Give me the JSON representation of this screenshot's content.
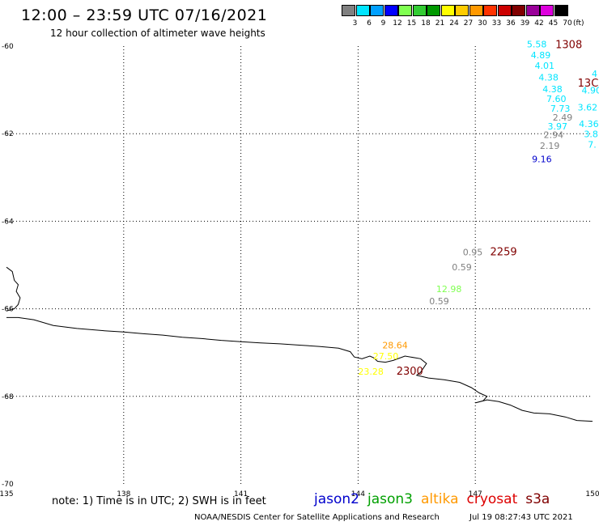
{
  "header": {
    "title": "12:00 – 23:59 UTC 07/16/2021",
    "subtitle": "12 hour collection of altimeter wave heights"
  },
  "legend": {
    "unit": "(ft)",
    "bins": [
      {
        "label": "3",
        "color": "#808080"
      },
      {
        "label": "6",
        "color": "#00e5ff"
      },
      {
        "label": "9",
        "color": "#00a0ff"
      },
      {
        "label": "12",
        "color": "#0000ff"
      },
      {
        "label": "15",
        "color": "#7fff50"
      },
      {
        "label": "18",
        "color": "#33cc33"
      },
      {
        "label": "21",
        "color": "#009900"
      },
      {
        "label": "24",
        "color": "#ffff00"
      },
      {
        "label": "27",
        "color": "#ffcc00"
      },
      {
        "label": "30",
        "color": "#ff9900"
      },
      {
        "label": "33",
        "color": "#ff3300"
      },
      {
        "label": "36",
        "color": "#cc0000"
      },
      {
        "label": "39",
        "color": "#800000"
      },
      {
        "label": "42",
        "color": "#990099"
      },
      {
        "label": "45",
        "color": "#dd00dd"
      },
      {
        "label": "70",
        "color": "#000000"
      }
    ]
  },
  "map": {
    "lon_range": [
      135,
      150
    ],
    "lat_range": [
      -70,
      -60
    ],
    "lon_ticks": [
      {
        "value": 135,
        "label": "135"
      },
      {
        "value": 138,
        "label": "138"
      },
      {
        "value": 141,
        "label": "141"
      },
      {
        "value": 144,
        "label": "144"
      },
      {
        "value": 147,
        "label": "147"
      },
      {
        "value": 150,
        "label": "150"
      }
    ],
    "lat_ticks": [
      {
        "value": -60,
        "label": "-60"
      },
      {
        "value": -62,
        "label": "-62"
      },
      {
        "value": -64,
        "label": "-64"
      },
      {
        "value": -66,
        "label": "-66"
      },
      {
        "value": -68,
        "label": "-68"
      },
      {
        "value": -70,
        "label": "-70"
      }
    ],
    "coast_lines": [
      [
        [
          135.0,
          -65.05
        ],
        [
          135.15,
          -65.15
        ],
        [
          135.2,
          -65.35
        ],
        [
          135.3,
          -65.45
        ],
        [
          135.25,
          -65.6
        ],
        [
          135.35,
          -65.75
        ],
        [
          135.3,
          -65.9
        ],
        [
          135.2,
          -66.0
        ],
        [
          135.0,
          -66.05
        ]
      ],
      [
        [
          135.0,
          -66.2
        ],
        [
          135.3,
          -66.2
        ],
        [
          135.7,
          -66.25
        ],
        [
          136.2,
          -66.38
        ],
        [
          136.8,
          -66.45
        ],
        [
          137.5,
          -66.5
        ],
        [
          138.0,
          -66.53
        ],
        [
          138.5,
          -66.57
        ],
        [
          139.0,
          -66.6
        ],
        [
          139.5,
          -66.65
        ],
        [
          140.0,
          -66.68
        ],
        [
          140.5,
          -66.72
        ],
        [
          141.0,
          -66.75
        ],
        [
          141.5,
          -66.78
        ],
        [
          142.0,
          -66.8
        ],
        [
          142.5,
          -66.83
        ],
        [
          143.0,
          -66.86
        ],
        [
          143.5,
          -66.9
        ],
        [
          143.8,
          -66.98
        ],
        [
          143.9,
          -67.1
        ],
        [
          144.1,
          -67.14
        ],
        [
          144.3,
          -67.08
        ],
        [
          144.4,
          -67.12
        ],
        [
          144.5,
          -67.2
        ],
        [
          144.7,
          -67.22
        ],
        [
          144.9,
          -67.18
        ],
        [
          145.2,
          -67.08
        ],
        [
          145.6,
          -67.14
        ],
        [
          145.75,
          -67.25
        ],
        [
          145.6,
          -67.45
        ],
        [
          145.5,
          -67.52
        ],
        [
          145.8,
          -67.58
        ],
        [
          146.2,
          -67.62
        ],
        [
          146.6,
          -67.68
        ],
        [
          146.9,
          -67.8
        ],
        [
          147.1,
          -67.92
        ],
        [
          147.3,
          -68.0
        ],
        [
          147.2,
          -68.1
        ],
        [
          147.0,
          -68.15
        ],
        [
          147.3,
          -68.08
        ],
        [
          147.6,
          -68.12
        ],
        [
          147.9,
          -68.2
        ],
        [
          148.2,
          -68.32
        ],
        [
          148.5,
          -68.38
        ],
        [
          148.9,
          -68.4
        ],
        [
          149.3,
          -68.47
        ],
        [
          149.6,
          -68.55
        ],
        [
          150.0,
          -68.57
        ]
      ]
    ]
  },
  "observations": [
    {
      "text": "5.58",
      "lon": 148.32,
      "lat": -60.03,
      "color": "#00e5ff"
    },
    {
      "text": "4.89",
      "lon": 148.42,
      "lat": -60.28,
      "color": "#00e5ff"
    },
    {
      "text": "4.01",
      "lon": 148.52,
      "lat": -60.52,
      "color": "#00e5ff"
    },
    {
      "text": "4.38",
      "lon": 148.62,
      "lat": -60.79,
      "color": "#00e5ff"
    },
    {
      "text": "4.38",
      "lon": 148.72,
      "lat": -61.05,
      "color": "#00e5ff"
    },
    {
      "text": "7.60",
      "lon": 148.82,
      "lat": -61.28,
      "color": "#00e5ff"
    },
    {
      "text": "7.73",
      "lon": 148.92,
      "lat": -61.5,
      "color": "#00e5ff"
    },
    {
      "text": "2.49",
      "lon": 148.98,
      "lat": -61.7,
      "color": "#808080"
    },
    {
      "text": "3.97",
      "lon": 148.85,
      "lat": -61.9,
      "color": "#00e5ff"
    },
    {
      "text": "2.94",
      "lon": 148.75,
      "lat": -62.1,
      "color": "#808080"
    },
    {
      "text": "2.19",
      "lon": 148.65,
      "lat": -62.35,
      "color": "#808080"
    },
    {
      "text": "9.16",
      "lon": 148.45,
      "lat": -62.65,
      "color": "#0000cc"
    },
    {
      "text": "4.90",
      "lon": 149.72,
      "lat": -61.08,
      "color": "#00e5ff"
    },
    {
      "text": "3.62",
      "lon": 149.62,
      "lat": -61.47,
      "color": "#00e5ff"
    },
    {
      "text": "4.36",
      "lon": 149.65,
      "lat": -61.85,
      "color": "#00e5ff"
    },
    {
      "text": "3.8",
      "lon": 149.78,
      "lat": -62.08,
      "color": "#00e5ff"
    },
    {
      "text": "7.",
      "lon": 149.88,
      "lat": -62.32,
      "color": "#00e5ff"
    },
    {
      "text": "4",
      "lon": 149.98,
      "lat": -60.7,
      "color": "#00e5ff"
    },
    {
      "text": "0.95",
      "lon": 146.68,
      "lat": -64.78,
      "color": "#808080"
    },
    {
      "text": "0.59",
      "lon": 146.4,
      "lat": -65.12,
      "color": "#808080"
    },
    {
      "text": "12.98",
      "lon": 146.0,
      "lat": -65.62,
      "color": "#7fff50"
    },
    {
      "text": "0.59",
      "lon": 145.82,
      "lat": -65.9,
      "color": "#808080"
    },
    {
      "text": "28.64",
      "lon": 144.62,
      "lat": -66.9,
      "color": "#ff9900"
    },
    {
      "text": "27.50",
      "lon": 144.38,
      "lat": -67.15,
      "color": "#ffff00"
    },
    {
      "text": "23.28",
      "lon": 144.0,
      "lat": -67.5,
      "color": "#ffff00"
    }
  ],
  "pass_times": [
    {
      "text": "1308",
      "lon": 149.05,
      "lat": -60.05,
      "color": "#800000"
    },
    {
      "text": "13C",
      "lon": 149.62,
      "lat": -60.92,
      "color": "#800000"
    },
    {
      "text": "2259",
      "lon": 147.38,
      "lat": -64.78,
      "color": "#800000"
    },
    {
      "text": "2300",
      "lon": 144.98,
      "lat": -67.5,
      "color": "#800000"
    }
  ],
  "footer": {
    "note": "note:  1) Time is in UTC;  2) SWH is in feet",
    "satellites": [
      {
        "name": "jason2",
        "color": "#0000cc"
      },
      {
        "name": "jason3",
        "color": "#00a000"
      },
      {
        "name": "altika",
        "color": "#ff9900"
      },
      {
        "name": "cryosat",
        "color": "#dd0000"
      },
      {
        "name": "s3a",
        "color": "#800000"
      }
    ],
    "credit": "NOAA/NESDIS Center for Satellite Applications and Research",
    "timestamp": "Jul 19 08:27:43 UTC 2021"
  }
}
